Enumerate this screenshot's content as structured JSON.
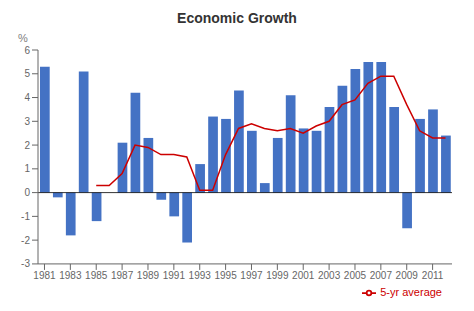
{
  "chart_data": {
    "type": "bar",
    "title": "Economic Growth",
    "ylabel": "%",
    "x": [
      1981,
      1982,
      1983,
      1984,
      1985,
      1986,
      1987,
      1988,
      1989,
      1990,
      1991,
      1992,
      1993,
      1994,
      1995,
      1996,
      1997,
      1998,
      1999,
      2000,
      2001,
      2002,
      2003,
      2004,
      2005,
      2006,
      2007,
      2008,
      2009,
      2010,
      2011,
      2012
    ],
    "series": [
      {
        "type": "bar",
        "color": "#4472C4",
        "values": [
          5.3,
          -0.2,
          -1.8,
          5.1,
          -1.2,
          0.0,
          2.1,
          4.2,
          2.3,
          -0.3,
          -1.0,
          -2.1,
          1.2,
          3.2,
          3.1,
          4.3,
          2.6,
          0.4,
          2.3,
          4.1,
          2.7,
          2.6,
          3.6,
          4.5,
          5.2,
          5.5,
          5.5,
          3.6,
          -1.5,
          3.1,
          3.5,
          2.4
        ]
      },
      {
        "type": "line",
        "name": "5-yr average",
        "color": "#CC0000",
        "values": [
          null,
          null,
          null,
          null,
          0.3,
          0.3,
          0.8,
          2.0,
          1.9,
          1.6,
          1.6,
          1.5,
          0.1,
          0.1,
          1.6,
          2.7,
          2.9,
          2.7,
          2.6,
          2.7,
          2.5,
          2.8,
          3.0,
          3.7,
          3.9,
          4.6,
          4.9,
          4.9,
          3.7,
          2.6,
          2.3,
          2.3
        ]
      }
    ],
    "xlim": [
      1980.5,
      2012.5
    ],
    "xticks": [
      1981,
      1983,
      1985,
      1987,
      1989,
      1991,
      1993,
      1995,
      1997,
      1999,
      2001,
      2003,
      2005,
      2007,
      2009,
      2011
    ],
    "ylim": [
      -3,
      6
    ],
    "yticks": [
      -3,
      -2,
      -1,
      0,
      1,
      2,
      3,
      4,
      5,
      6
    ],
    "legend": "lower right"
  }
}
